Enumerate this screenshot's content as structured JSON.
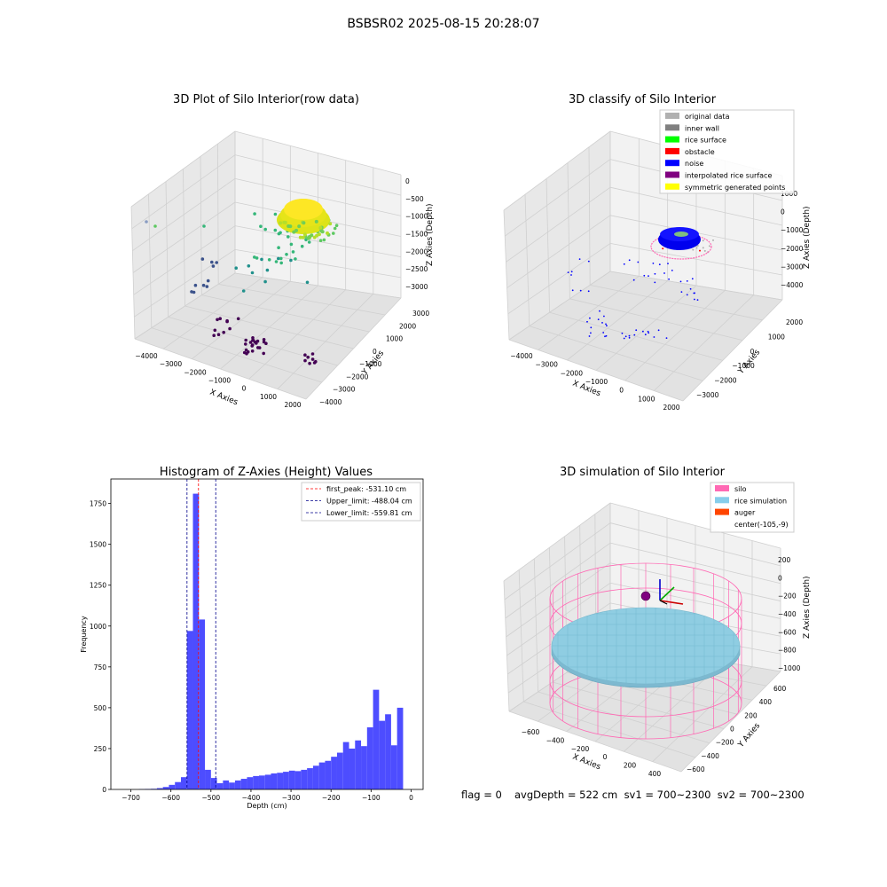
{
  "suptitle": "BSBSR02 2025-08-15 20:28:07",
  "colors": {
    "pane_left": "#e8e8e8",
    "pane_right": "#f2f2f2",
    "pane_floor": "#e2e2e2",
    "grid": "#d0d0d0",
    "hist_bar": "#4d4dff",
    "first_peak": "#ff0000",
    "limit": "#00008b",
    "silo": "#ff69b4",
    "rice_sim": "#87ceeb",
    "auger": "#ff4500"
  },
  "chart_data": [
    {
      "type": "scatter",
      "subtype": "3d-scatter",
      "title": "3D Plot of Silo Interior(row data)",
      "xlabel": "X Axies",
      "ylabel": "Y Axies",
      "zlabel": "Z Axies (Depth)",
      "xticks": [
        "−4000",
        "−3000",
        "−2000",
        "−1000",
        "0",
        "1000",
        "2000"
      ],
      "yticks": [
        "−4000",
        "−3000",
        "−2000",
        "−1000",
        "0",
        "1000",
        "2000",
        "3000"
      ],
      "zticks": [
        "−3000",
        "−2500",
        "−2000",
        "−1500",
        "−1000",
        "−500",
        "0"
      ],
      "xlim": [
        -4000,
        2000
      ],
      "ylim": [
        -4000,
        3000
      ],
      "zlim": [
        -3200,
        200
      ],
      "colormap": "viridis (by depth)",
      "clusters": [
        {
          "name": "rice surface dome",
          "x_range": [
            -500,
            500
          ],
          "y_range": [
            -500,
            500
          ],
          "z": -500,
          "color": "#fde725"
        },
        {
          "name": "scattered points",
          "x_range": [
            -3500,
            1500
          ],
          "y_range": [
            -3500,
            2500
          ],
          "z_range": [
            -3000,
            -1000
          ],
          "color": "#35b779"
        }
      ],
      "grid": true
    },
    {
      "type": "scatter",
      "subtype": "3d-scatter",
      "title": "3D classify of Silo Interior",
      "xlabel": "X Axies",
      "ylabel": "Y Axies",
      "zlabel": "Z Axies (Depth)",
      "xticks": [
        "−4000",
        "−3000",
        "−2000",
        "−1000",
        "0",
        "1000",
        "2000"
      ],
      "yticks": [
        "−3000",
        "−2000",
        "−1000",
        "0",
        "1000",
        "2000"
      ],
      "zticks": [
        "−4000",
        "−3000",
        "−2000",
        "−1000",
        "0",
        "1000"
      ],
      "legend": {
        "position": "upper-right",
        "entries": [
          {
            "label": "original data",
            "color": "#b0b0b0"
          },
          {
            "label": "inner wall",
            "color": "#808080"
          },
          {
            "label": "rice surface",
            "color": "#00ff00"
          },
          {
            "label": "obstacle",
            "color": "#ff0000"
          },
          {
            "label": "noise",
            "color": "#0000ff"
          },
          {
            "label": "interpolated rice surface",
            "color": "#800080"
          },
          {
            "label": "symmetric generated points",
            "color": "#ffff00"
          }
        ]
      },
      "grid": true
    },
    {
      "type": "bar",
      "subtype": "histogram",
      "title": "Histogram of Z-Axies (Height) Values",
      "xlabel": "Depth (cm)",
      "ylabel": "Frequency",
      "xlim": [
        -750,
        30
      ],
      "ylim": [
        0,
        1900
      ],
      "xticks": [
        -700,
        -600,
        -500,
        -400,
        -300,
        -200,
        -100,
        0
      ],
      "yticks": [
        0,
        250,
        500,
        750,
        1000,
        1250,
        1500,
        1750
      ],
      "bin_edges_start": -680,
      "bin_width": 15,
      "values": [
        2,
        3,
        4,
        8,
        15,
        28,
        45,
        75,
        970,
        1810,
        1040,
        120,
        70,
        38,
        55,
        42,
        55,
        65,
        75,
        82,
        85,
        90,
        98,
        102,
        108,
        115,
        112,
        120,
        130,
        145,
        165,
        175,
        200,
        225,
        290,
        250,
        300,
        265,
        380,
        610,
        420,
        460,
        270,
        500
      ],
      "vlines": [
        {
          "label": "first_peak: -531.10 cm",
          "x": -531.1,
          "color": "#ff0000"
        },
        {
          "label": "Upper_limit: -488.04 cm",
          "x": -488.04,
          "color": "#00008b"
        },
        {
          "label": "Lower_limit: -559.81 cm",
          "x": -559.81,
          "color": "#00008b"
        }
      ],
      "legend": {
        "position": "upper-right"
      },
      "grid": false
    },
    {
      "type": "scatter",
      "subtype": "3d-surface",
      "title": "3D simulation of Silo Interior",
      "xlabel": "X Axies",
      "ylabel": "Y Axies",
      "zlabel": "Z Axies (Depth)",
      "xticks": [
        "−600",
        "−400",
        "−200",
        "0",
        "200",
        "400"
      ],
      "yticks": [
        "−600",
        "−400",
        "−200",
        "0",
        "200",
        "400",
        "600"
      ],
      "zticks": [
        "−1000",
        "−800",
        "−600",
        "−400",
        "−200",
        "0",
        "200"
      ],
      "legend": {
        "position": "upper-right",
        "entries": [
          {
            "label": "silo",
            "color": "#ff69b4"
          },
          {
            "label": "rice simulation",
            "color": "#87ceeb"
          },
          {
            "label": "auger",
            "color": "#ff4500"
          },
          {
            "label": "center(-105,-9)",
            "color": ""
          }
        ]
      },
      "grid": true
    }
  ],
  "footer": {
    "flag": "flag = 0",
    "stats": "avgDepth = 522 cm  sv1 = 700~2300  sv2 = 700~2300"
  }
}
